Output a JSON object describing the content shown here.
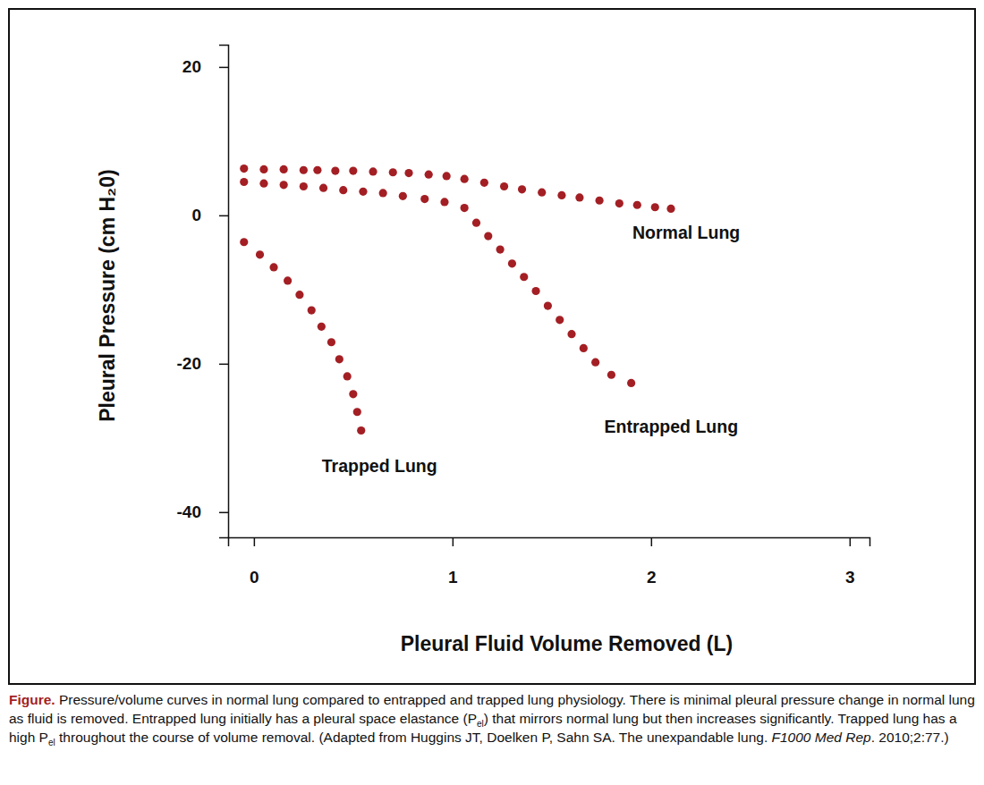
{
  "chart_data": {
    "type": "scatter",
    "x_label": "Pleural Fluid Volume Removed (L)",
    "y_label": "Pleural Pressure (cm H₂0)",
    "xlim": [
      -0.13,
      3.1
    ],
    "ylim": [
      -43.4,
      23
    ],
    "xticks": [
      0,
      1,
      2,
      3
    ],
    "yticks": [
      20,
      0,
      -20,
      -40
    ],
    "marker": "circle",
    "series": [
      {
        "name": "Normal Lung",
        "color": "#a31f24",
        "x": [
          -0.05,
          0.05,
          0.15,
          0.25,
          0.32,
          0.41,
          0.5,
          0.6,
          0.7,
          0.78,
          0.88,
          0.97,
          1.06,
          1.16,
          1.26,
          1.35,
          1.45,
          1.55,
          1.64,
          1.74,
          1.84,
          1.93,
          2.02,
          2.1
        ],
        "values": [
          6.3,
          6.2,
          6.2,
          6.1,
          6.1,
          6.0,
          6.0,
          5.9,
          5.8,
          5.7,
          5.5,
          5.3,
          4.9,
          4.4,
          3.9,
          3.5,
          3.1,
          2.7,
          2.4,
          2.0,
          1.6,
          1.4,
          1.1,
          0.9
        ]
      },
      {
        "name": "Entrapped Lung",
        "color": "#a31f24",
        "x": [
          -0.05,
          0.05,
          0.15,
          0.25,
          0.35,
          0.45,
          0.55,
          0.65,
          0.75,
          0.86,
          0.96,
          1.06,
          1.12,
          1.18,
          1.24,
          1.3,
          1.36,
          1.42,
          1.48,
          1.54,
          1.6,
          1.66,
          1.72,
          1.8,
          1.9
        ],
        "values": [
          4.5,
          4.3,
          4.1,
          3.9,
          3.7,
          3.4,
          3.2,
          3.0,
          2.6,
          2.2,
          1.8,
          1.0,
          -1.0,
          -2.8,
          -4.6,
          -6.5,
          -8.3,
          -10.2,
          -12.2,
          -14.1,
          -16.0,
          -17.9,
          -19.8,
          -21.5,
          -22.6
        ]
      },
      {
        "name": "Trapped Lung",
        "color": "#a31f24",
        "x": [
          -0.05,
          0.03,
          0.1,
          0.17,
          0.23,
          0.29,
          0.34,
          0.39,
          0.43,
          0.47,
          0.5,
          0.52,
          0.54
        ],
        "values": [
          -3.6,
          -5.3,
          -7.0,
          -8.8,
          -10.7,
          -12.8,
          -15.0,
          -17.1,
          -19.4,
          -21.7,
          -24.1,
          -26.5,
          -29.0
        ]
      }
    ],
    "caption": [
      {
        "text": "Figure.",
        "bold": true,
        "color": "#a31f24"
      },
      {
        "text": " Pressure/volume curves in normal lung compared to entrapped and trapped lung physiology. There is minimal pleural pressure change in normal lung as fluid is removed. Entrapped lung initially has a pleural space elastance (P"
      },
      {
        "text": "el",
        "sub": true
      },
      {
        "text": ") that mirrors normal lung but then increases significantly. Trapped lung has a high P"
      },
      {
        "text": "el",
        "sub": true
      },
      {
        "text": " throughout the course of volume removal. (Adapted from Huggins JT, Doelken P, Sahn SA. The unexpandable lung. "
      },
      {
        "text": "F1000 Med Rep",
        "italic": true
      },
      {
        "text": ". 2010;2:77.)"
      }
    ]
  }
}
